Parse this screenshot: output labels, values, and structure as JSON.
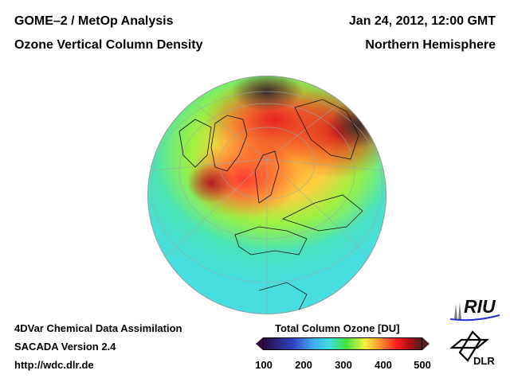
{
  "header": {
    "title_line1": "GOME–2 / MetOp Analysis",
    "title_line2": "Ozone Vertical Column Density",
    "date": "Jan 24, 2012, 12:00 GMT",
    "region": "Northern Hemisphere"
  },
  "footer": {
    "line1": "4DVar Chemical Data Assimilation",
    "line2": "SACADA Version 2.4",
    "url": "http://wdc.dlr.de"
  },
  "colorbar": {
    "title": "Total Column Ozone [DU]",
    "ticks": [
      "100",
      "200",
      "300",
      "400",
      "500"
    ],
    "range": [
      100,
      500
    ],
    "colors": [
      "#2a0a40",
      "#3040c0",
      "#40e0e0",
      "#40e040",
      "#f0f040",
      "#ff2020",
      "#502020"
    ]
  },
  "logos": {
    "riu": "RIU",
    "dlr": "DLR"
  }
}
